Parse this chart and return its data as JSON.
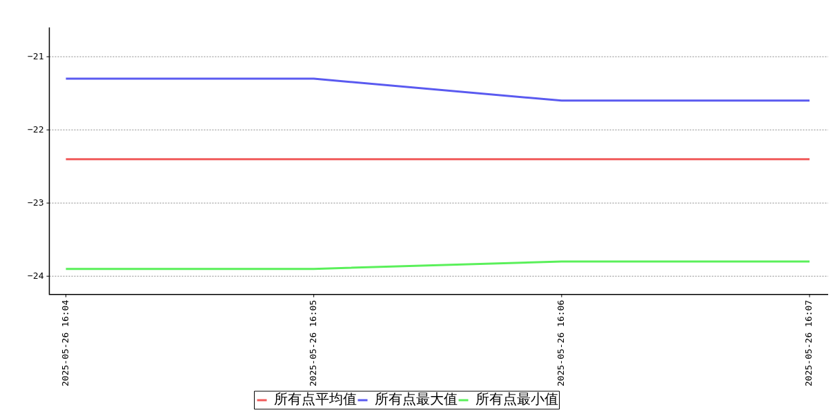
{
  "chart_data": {
    "type": "line",
    "categories": [
      "2025-05-26 16:04",
      "2025-05-26 16:05",
      "2025-05-26 16:06",
      "2025-05-26 16:07"
    ],
    "series": [
      {
        "name": "所有点平均值",
        "color": "#f05a5a",
        "values": [
          -22.4,
          -22.4,
          -22.4,
          -22.4
        ]
      },
      {
        "name": "所有点最大值",
        "color": "#5a5af0",
        "values": [
          -21.3,
          -21.3,
          -21.6,
          -21.6
        ]
      },
      {
        "name": "所有点最小值",
        "color": "#5af05a",
        "values": [
          -23.9,
          -23.9,
          -23.8,
          -23.8
        ]
      }
    ],
    "ylim": [
      -24.25,
      -20.6
    ],
    "yticks": [
      -24,
      -23,
      -22,
      -21
    ],
    "grid": "y",
    "legend": "bottom",
    "marker": "none",
    "line_style": "solid"
  }
}
